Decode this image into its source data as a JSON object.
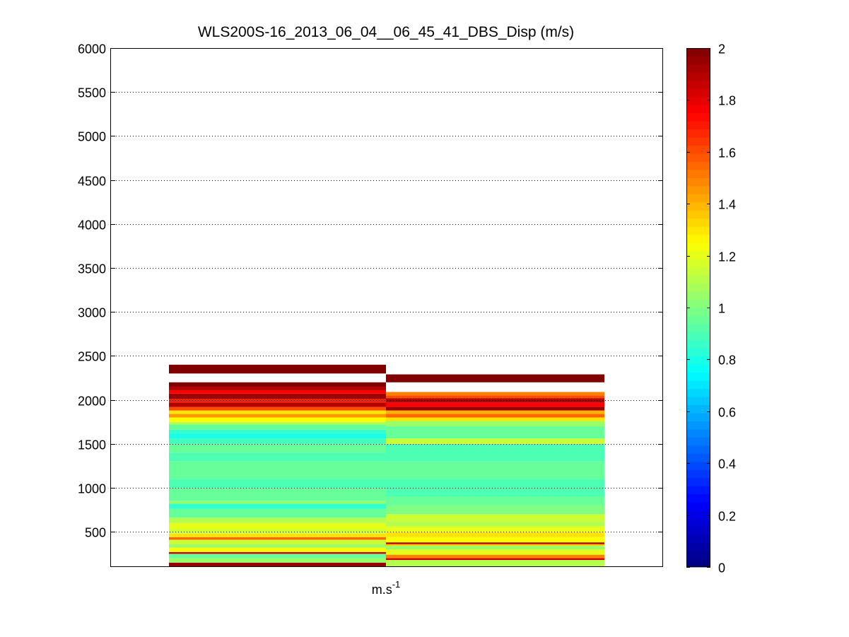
{
  "chart_data": {
    "type": "heatmap",
    "title": "WLS200S-16_2013_06_04__06_45_41_DBS_Disp (m/s)",
    "xlabel": {
      "base": "m.s",
      "superscript": "-1"
    },
    "ylabel": "",
    "ylim": [
      100,
      6000
    ],
    "yticks": [
      500,
      1000,
      1500,
      2000,
      2500,
      3000,
      3500,
      4000,
      4500,
      5000,
      5500,
      6000
    ],
    "ygrid": true,
    "colormap": "jet",
    "clim": [
      0,
      2
    ],
    "colorbar_ticks": [
      {
        "value": 0,
        "label": "0"
      },
      {
        "value": 0.2,
        "label": "0.2"
      },
      {
        "value": 0.4,
        "label": "0.4"
      },
      {
        "value": 0.6,
        "label": "0.6"
      },
      {
        "value": 0.8,
        "label": "0.8"
      },
      {
        "value": 1,
        "label": "1"
      },
      {
        "value": 1.2,
        "label": "1.2"
      },
      {
        "value": 1.4,
        "label": "1.4"
      },
      {
        "value": 1.6,
        "label": "1.6"
      },
      {
        "value": 1.8,
        "label": "1.8"
      },
      {
        "value": 2,
        "label": "2"
      }
    ],
    "columns": [
      {
        "cells": [
          {
            "y0": 100,
            "y1": 150,
            "v": 1.95
          },
          {
            "y0": 150,
            "y1": 200,
            "v": 1.05
          },
          {
            "y0": 200,
            "y1": 250,
            "v": 0.95
          },
          {
            "y0": 250,
            "y1": 270,
            "v": 1.85
          },
          {
            "y0": 270,
            "y1": 320,
            "v": 1.25
          },
          {
            "y0": 320,
            "y1": 360,
            "v": 1.05
          },
          {
            "y0": 360,
            "y1": 410,
            "v": 1.15
          },
          {
            "y0": 410,
            "y1": 440,
            "v": 1.55
          },
          {
            "y0": 440,
            "y1": 480,
            "v": 1.3
          },
          {
            "y0": 480,
            "y1": 530,
            "v": 1.15
          },
          {
            "y0": 530,
            "y1": 600,
            "v": 1.2
          },
          {
            "y0": 600,
            "y1": 660,
            "v": 1.1
          },
          {
            "y0": 660,
            "y1": 760,
            "v": 0.95
          },
          {
            "y0": 760,
            "y1": 820,
            "v": 0.85
          },
          {
            "y0": 820,
            "y1": 850,
            "v": 1.05
          },
          {
            "y0": 850,
            "y1": 1000,
            "v": 0.95
          },
          {
            "y0": 1000,
            "y1": 1100,
            "v": 0.9
          },
          {
            "y0": 1100,
            "y1": 1300,
            "v": 0.95
          },
          {
            "y0": 1300,
            "y1": 1400,
            "v": 0.9
          },
          {
            "y0": 1400,
            "y1": 1500,
            "v": 0.95
          },
          {
            "y0": 1500,
            "y1": 1560,
            "v": 0.88
          },
          {
            "y0": 1560,
            "y1": 1620,
            "v": 0.8
          },
          {
            "y0": 1620,
            "y1": 1660,
            "v": 0.85
          },
          {
            "y0": 1660,
            "y1": 1720,
            "v": 0.95
          },
          {
            "y0": 1720,
            "y1": 1750,
            "v": 1.1
          },
          {
            "y0": 1750,
            "y1": 1800,
            "v": 1.25
          },
          {
            "y0": 1800,
            "y1": 1840,
            "v": 1.45
          },
          {
            "y0": 1840,
            "y1": 1880,
            "v": 1.3
          },
          {
            "y0": 1880,
            "y1": 1920,
            "v": 1.6
          },
          {
            "y0": 1920,
            "y1": 1970,
            "v": 1.9
          },
          {
            "y0": 1970,
            "y1": 2010,
            "v": 1.7
          },
          {
            "y0": 2010,
            "y1": 2070,
            "v": 1.95
          },
          {
            "y0": 2070,
            "y1": 2110,
            "v": 1.75
          },
          {
            "y0": 2110,
            "y1": 2150,
            "v": 1.9
          },
          {
            "y0": 2150,
            "y1": 2200,
            "v": 2.0
          },
          {
            "y0": 2300,
            "y1": 2400,
            "v": 2.0
          }
        ]
      },
      {
        "cells": [
          {
            "y0": 100,
            "y1": 180,
            "v": 1.1
          },
          {
            "y0": 180,
            "y1": 200,
            "v": 1.85
          },
          {
            "y0": 200,
            "y1": 240,
            "v": 1.5
          },
          {
            "y0": 240,
            "y1": 300,
            "v": 1.2
          },
          {
            "y0": 300,
            "y1": 340,
            "v": 1.05
          },
          {
            "y0": 340,
            "y1": 360,
            "v": 1.35
          },
          {
            "y0": 360,
            "y1": 380,
            "v": 1.9
          },
          {
            "y0": 380,
            "y1": 440,
            "v": 1.25
          },
          {
            "y0": 440,
            "y1": 500,
            "v": 1.3
          },
          {
            "y0": 500,
            "y1": 560,
            "v": 1.2
          },
          {
            "y0": 560,
            "y1": 620,
            "v": 1.1
          },
          {
            "y0": 620,
            "y1": 700,
            "v": 1.15
          },
          {
            "y0": 700,
            "y1": 800,
            "v": 1.0
          },
          {
            "y0": 800,
            "y1": 900,
            "v": 0.95
          },
          {
            "y0": 900,
            "y1": 1100,
            "v": 0.9
          },
          {
            "y0": 1100,
            "y1": 1300,
            "v": 0.95
          },
          {
            "y0": 1300,
            "y1": 1500,
            "v": 0.9
          },
          {
            "y0": 1500,
            "y1": 1560,
            "v": 1.15
          },
          {
            "y0": 1560,
            "y1": 1700,
            "v": 0.95
          },
          {
            "y0": 1700,
            "y1": 1760,
            "v": 1.05
          },
          {
            "y0": 1760,
            "y1": 1800,
            "v": 1.3
          },
          {
            "y0": 1800,
            "y1": 1840,
            "v": 1.55
          },
          {
            "y0": 1840,
            "y1": 1880,
            "v": 1.4
          },
          {
            "y0": 1880,
            "y1": 1920,
            "v": 1.95
          },
          {
            "y0": 1920,
            "y1": 1970,
            "v": 1.75
          },
          {
            "y0": 1970,
            "y1": 2020,
            "v": 1.9
          },
          {
            "y0": 2020,
            "y1": 2050,
            "v": 1.6
          },
          {
            "y0": 2050,
            "y1": 2090,
            "v": 1.5
          },
          {
            "y0": 2200,
            "y1": 2290,
            "v": 2.0
          }
        ]
      }
    ]
  }
}
